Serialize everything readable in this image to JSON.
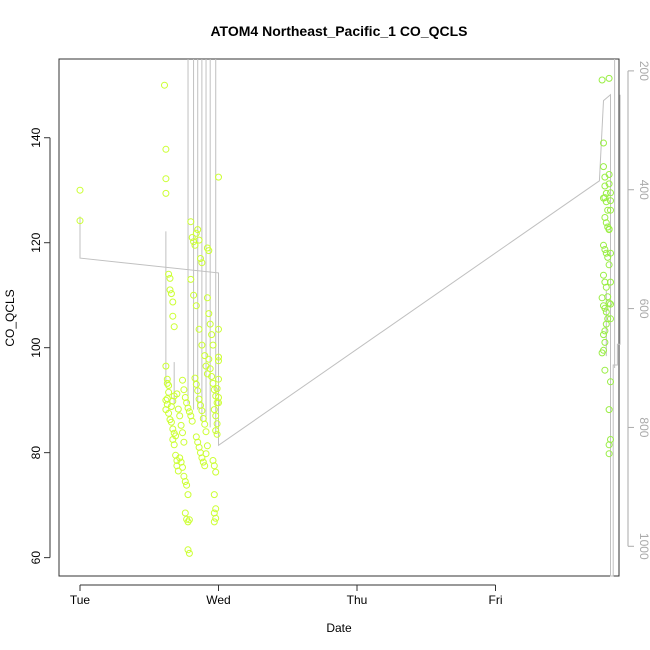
{
  "chart_data": {
    "type": "scatter",
    "title": "ATOM4 Northeast_Pacific_1 CO_QCLS",
    "xlabel": "Date",
    "ylabel": "CO_QCLS",
    "x_ticks": [
      "Tue",
      "Wed",
      "Thu",
      "Fri"
    ],
    "x_range": [
      "Tue 00:00",
      "Sat 04:00"
    ],
    "y_left": {
      "range": [
        56.5,
        155
      ],
      "ticks": [
        60,
        80,
        100,
        120,
        140
      ]
    },
    "y_right": {
      "range": [
        1050,
        180
      ],
      "ticks": [
        200,
        400,
        600,
        800,
        1000
      ],
      "reversed": true
    },
    "grid": false,
    "colors": {
      "points_early": "#ccff33",
      "points_late": "#99ee44",
      "profile_line": "#c0c0c0",
      "axis": "#333333"
    },
    "profile_line_right_axis": [
      [
        0.0,
        445
      ],
      [
        0.0,
        515
      ],
      [
        1.0,
        540
      ],
      [
        1.0,
        735
      ],
      [
        1.0,
        830
      ],
      [
        3.75,
        385
      ],
      [
        3.78,
        250
      ],
      [
        3.83,
        240
      ],
      [
        3.83,
        1060
      ],
      [
        3.85,
        1060
      ],
      [
        3.85,
        695
      ],
      [
        3.88,
        695
      ],
      [
        3.88,
        660
      ],
      [
        3.9,
        660
      ],
      [
        3.9,
        240
      ]
    ],
    "profile_spikes_right_axis": [
      {
        "x": 0.62,
        "from": 470,
        "to": 730
      },
      {
        "x": 0.68,
        "from": 690,
        "to": 760
      },
      {
        "x": 0.78,
        "from": 180,
        "to": 760
      },
      {
        "x": 0.82,
        "from": 180,
        "to": 770
      },
      {
        "x": 0.85,
        "from": 180,
        "to": 770
      },
      {
        "x": 0.88,
        "from": 180,
        "to": 790
      },
      {
        "x": 0.91,
        "from": 180,
        "to": 790
      },
      {
        "x": 0.94,
        "from": 180,
        "to": 800
      },
      {
        "x": 0.98,
        "from": 180,
        "to": 810
      },
      {
        "x": 3.8,
        "from": 570,
        "to": 680
      },
      {
        "x": 3.86,
        "from": 180,
        "to": 700
      }
    ],
    "series": [
      {
        "values": [
          [
            0.0,
            130
          ],
          [
            0.0,
            124.2
          ],
          [
            0.61,
            150
          ],
          [
            0.62,
            137.8
          ],
          [
            0.62,
            132.2
          ],
          [
            0.62,
            129.4
          ],
          [
            0.64,
            114
          ],
          [
            0.65,
            113.2
          ],
          [
            0.65,
            111
          ],
          [
            0.66,
            110.3
          ],
          [
            0.67,
            108.7
          ],
          [
            0.67,
            106
          ],
          [
            0.68,
            104
          ],
          [
            0.62,
            96.5
          ],
          [
            0.63,
            94
          ],
          [
            0.63,
            93.2
          ],
          [
            0.64,
            92.8
          ],
          [
            0.64,
            91.5
          ],
          [
            0.63,
            90.3
          ],
          [
            0.62,
            90
          ],
          [
            0.63,
            89.2
          ],
          [
            0.62,
            88.2
          ],
          [
            0.64,
            87.5
          ],
          [
            0.65,
            86.3
          ],
          [
            0.66,
            85.8
          ],
          [
            0.67,
            84.5
          ],
          [
            0.68,
            83.7
          ],
          [
            0.69,
            83.2
          ],
          [
            0.67,
            82.5
          ],
          [
            0.68,
            81.5
          ],
          [
            0.69,
            79.5
          ],
          [
            0.7,
            78.5
          ],
          [
            0.7,
            77.5
          ],
          [
            0.71,
            76.5
          ],
          [
            0.66,
            88.8
          ],
          [
            0.67,
            89.8
          ],
          [
            0.68,
            90.8
          ],
          [
            0.7,
            91.2
          ],
          [
            0.71,
            88.3
          ],
          [
            0.72,
            87
          ],
          [
            0.73,
            85.2
          ],
          [
            0.74,
            83.8
          ],
          [
            0.75,
            82
          ],
          [
            0.72,
            79
          ],
          [
            0.73,
            78.2
          ],
          [
            0.74,
            77.2
          ],
          [
            0.75,
            75.5
          ],
          [
            0.76,
            74.5
          ],
          [
            0.77,
            73.8
          ],
          [
            0.78,
            72
          ],
          [
            0.76,
            68.5
          ],
          [
            0.77,
            67.3
          ],
          [
            0.78,
            66.8
          ],
          [
            0.79,
            67.2
          ],
          [
            0.78,
            61.5
          ],
          [
            0.79,
            60.8
          ],
          [
            0.74,
            93.8
          ],
          [
            0.75,
            92
          ],
          [
            0.76,
            90.5
          ],
          [
            0.77,
            89.5
          ],
          [
            0.78,
            88.5
          ],
          [
            0.79,
            87.8
          ],
          [
            0.8,
            87
          ],
          [
            0.81,
            86
          ],
          [
            0.8,
            124
          ],
          [
            0.81,
            121
          ],
          [
            0.82,
            120.2
          ],
          [
            0.83,
            119.5
          ],
          [
            0.84,
            121.8
          ],
          [
            0.85,
            122.5
          ],
          [
            0.86,
            120.5
          ],
          [
            0.87,
            117
          ],
          [
            0.88,
            116.2
          ],
          [
            0.8,
            113
          ],
          [
            0.82,
            110
          ],
          [
            0.84,
            108
          ],
          [
            0.86,
            103.5
          ],
          [
            0.88,
            100.5
          ],
          [
            0.9,
            98.5
          ],
          [
            0.91,
            96.5
          ],
          [
            0.92,
            95
          ],
          [
            0.83,
            94.2
          ],
          [
            0.84,
            93
          ],
          [
            0.85,
            91.8
          ],
          [
            0.86,
            90.2
          ],
          [
            0.87,
            89
          ],
          [
            0.88,
            88
          ],
          [
            0.89,
            86.5
          ],
          [
            0.9,
            85.4
          ],
          [
            0.91,
            84
          ],
          [
            0.84,
            83
          ],
          [
            0.85,
            82
          ],
          [
            0.86,
            81
          ],
          [
            0.87,
            80
          ],
          [
            0.88,
            79
          ],
          [
            0.89,
            78.2
          ],
          [
            0.9,
            77.5
          ],
          [
            0.91,
            79.8
          ],
          [
            0.92,
            81.3
          ],
          [
            0.92,
            119
          ],
          [
            0.93,
            118.5
          ],
          [
            0.92,
            109.5
          ],
          [
            0.93,
            106.5
          ],
          [
            0.94,
            104.5
          ],
          [
            0.95,
            102.5
          ],
          [
            0.96,
            100.5
          ],
          [
            0.93,
            97.8
          ],
          [
            0.94,
            96
          ],
          [
            0.95,
            94.5
          ],
          [
            0.96,
            93.2
          ],
          [
            0.97,
            92
          ],
          [
            0.98,
            90.8
          ],
          [
            0.99,
            89.5
          ],
          [
            0.97,
            88.2
          ],
          [
            0.98,
            87
          ],
          [
            0.99,
            85.5
          ],
          [
            0.98,
            84.2
          ],
          [
            0.99,
            83.5
          ],
          [
            0.96,
            78.5
          ],
          [
            0.97,
            77.5
          ],
          [
            0.98,
            76.3
          ],
          [
            0.97,
            72
          ],
          [
            0.98,
            69.3
          ],
          [
            0.97,
            68.5
          ],
          [
            0.98,
            67.5
          ],
          [
            0.97,
            66.8
          ],
          [
            1.0,
            132.5
          ],
          [
            1.0,
            103.5
          ],
          [
            1.0,
            98.2
          ],
          [
            1.0,
            97.5
          ],
          [
            1.0,
            94
          ],
          [
            0.99,
            92.2
          ],
          [
            1.0,
            90.5
          ],
          [
            1.0,
            89.5
          ]
        ]
      },
      {
        "values": [
          [
            3.77,
            151
          ],
          [
            3.78,
            139
          ],
          [
            3.78,
            134.5
          ],
          [
            3.79,
            132.5
          ],
          [
            3.79,
            130.8
          ],
          [
            3.8,
            129.4
          ],
          [
            3.79,
            128.6
          ],
          [
            3.78,
            128.5
          ],
          [
            3.8,
            127.8
          ],
          [
            3.81,
            126.2
          ],
          [
            3.79,
            124.8
          ],
          [
            3.8,
            123.8
          ],
          [
            3.81,
            123
          ],
          [
            3.82,
            122.6
          ],
          [
            3.78,
            119.5
          ],
          [
            3.79,
            118.7
          ],
          [
            3.8,
            118
          ],
          [
            3.81,
            117.2
          ],
          [
            3.82,
            115.8
          ],
          [
            3.78,
            113.8
          ],
          [
            3.79,
            112.5
          ],
          [
            3.8,
            111.5
          ],
          [
            3.81,
            109.7
          ],
          [
            3.82,
            108.5
          ],
          [
            3.77,
            109.5
          ],
          [
            3.78,
            108
          ],
          [
            3.79,
            107.5
          ],
          [
            3.8,
            106.8
          ],
          [
            3.81,
            105.5
          ],
          [
            3.8,
            104.5
          ],
          [
            3.79,
            103.2
          ],
          [
            3.78,
            102.5
          ],
          [
            3.79,
            101
          ],
          [
            3.78,
            99.5
          ],
          [
            3.77,
            99
          ],
          [
            3.82,
            151.3
          ],
          [
            3.82,
            133
          ],
          [
            3.82,
            131.2
          ],
          [
            3.83,
            129.5
          ],
          [
            3.83,
            128
          ],
          [
            3.83,
            126.2
          ],
          [
            3.82,
            122.5
          ],
          [
            3.83,
            118
          ],
          [
            3.83,
            112.5
          ],
          [
            3.83,
            108.3
          ],
          [
            3.83,
            105.5
          ],
          [
            3.83,
            93.5
          ],
          [
            3.82,
            88.2
          ],
          [
            3.82,
            81.5
          ],
          [
            3.83,
            82.5
          ],
          [
            3.82,
            79.8
          ],
          [
            3.79,
            95.7
          ]
        ]
      }
    ]
  }
}
